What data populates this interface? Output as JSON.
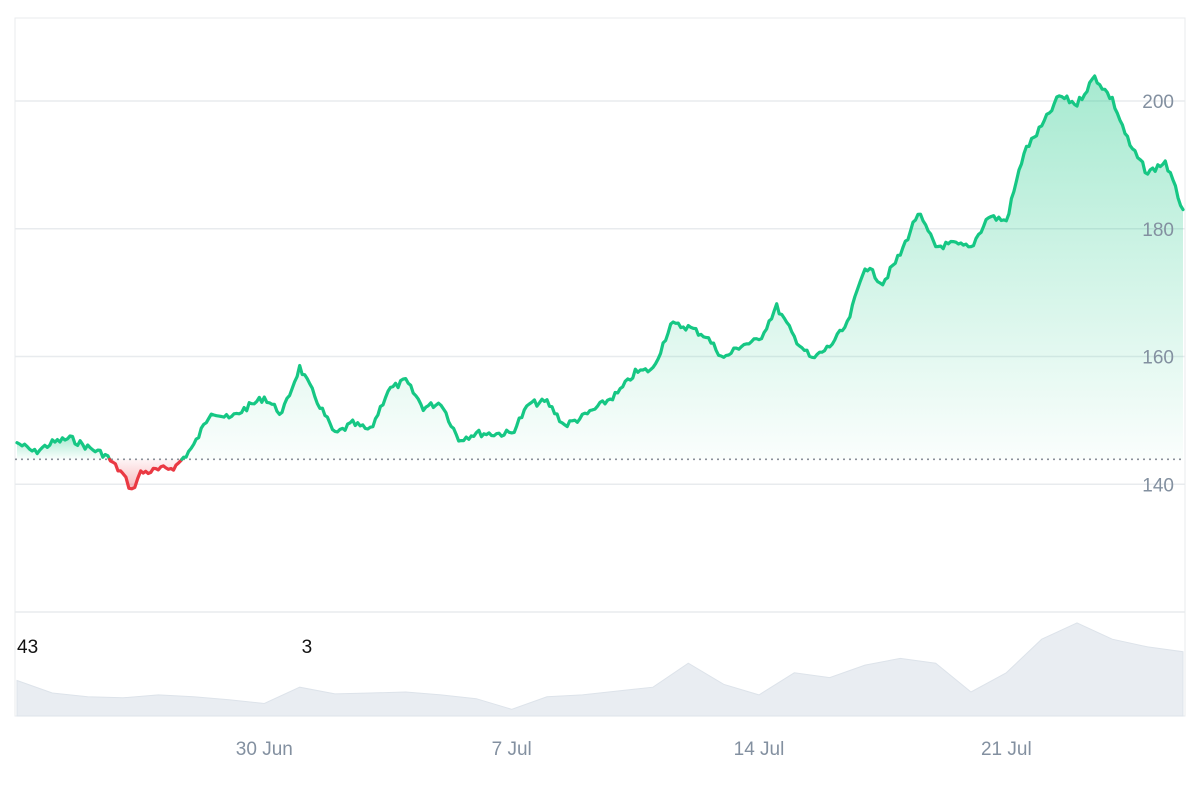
{
  "chart_data": {
    "type": "area",
    "baseline": 143.9,
    "ylim": [
      120,
      213
    ],
    "y_ticks": [
      {
        "value": 140,
        "label": "140"
      },
      {
        "value": 160,
        "label": "160"
      },
      {
        "value": 180,
        "label": "180"
      },
      {
        "value": 200,
        "label": "200"
      }
    ],
    "x_start": "2025-06-23",
    "x_end": "2025-07-26",
    "x_ticks": [
      {
        "date": "2025-06-30",
        "label": "30 Jun"
      },
      {
        "date": "2025-07-07",
        "label": "7 Jul"
      },
      {
        "date": "2025-07-14",
        "label": "14 Jul"
      },
      {
        "date": "2025-07-21",
        "label": "21 Jul"
      }
    ],
    "colors": {
      "above": "#16c784",
      "below": "#ea3943",
      "grid": "#e8ebee",
      "baseline": "#8a9099",
      "volume": "#e9edf2"
    },
    "price_series": [
      [
        "2025-06-23T00",
        146.5
      ],
      [
        "2025-06-23T12",
        145.0
      ],
      [
        "2025-06-24T00",
        146.5
      ],
      [
        "2025-06-24T12",
        147.2
      ],
      [
        "2025-06-25T00",
        145.8
      ],
      [
        "2025-06-25T12",
        144.6
      ],
      [
        "2025-06-26T00",
        141.5
      ],
      [
        "2025-06-26T06",
        139.0
      ],
      [
        "2025-06-26T12",
        141.8
      ],
      [
        "2025-06-27T00",
        142.2
      ],
      [
        "2025-06-27T12",
        142.8
      ],
      [
        "2025-06-28T00",
        146.0
      ],
      [
        "2025-06-28T12",
        151.5
      ],
      [
        "2025-06-29T00",
        150.2
      ],
      [
        "2025-06-29T12",
        152.0
      ],
      [
        "2025-06-30T00",
        153.6
      ],
      [
        "2025-06-30T12",
        151.0
      ],
      [
        "2025-07-01T00",
        158.3
      ],
      [
        "2025-07-01T12",
        153.0
      ],
      [
        "2025-07-02T00",
        147.8
      ],
      [
        "2025-07-02T12",
        149.5
      ],
      [
        "2025-07-03T00",
        148.4
      ],
      [
        "2025-07-03T12",
        154.7
      ],
      [
        "2025-07-04T00",
        156.2
      ],
      [
        "2025-07-04T12",
        152.0
      ],
      [
        "2025-07-05T00",
        152.8
      ],
      [
        "2025-07-05T12",
        147.0
      ],
      [
        "2025-07-06T00",
        148.0
      ],
      [
        "2025-07-06T12",
        147.9
      ],
      [
        "2025-07-07T00",
        148.0
      ],
      [
        "2025-07-07T12",
        152.6
      ],
      [
        "2025-07-08T00",
        152.9
      ],
      [
        "2025-07-08T12",
        149.2
      ],
      [
        "2025-07-09T00",
        150.5
      ],
      [
        "2025-07-09T12",
        152.3
      ],
      [
        "2025-07-10T00",
        154.2
      ],
      [
        "2025-07-10T12",
        157.5
      ],
      [
        "2025-07-11T00",
        158.0
      ],
      [
        "2025-07-11T12",
        165.0
      ],
      [
        "2025-07-12T00",
        164.6
      ],
      [
        "2025-07-12T12",
        163.2
      ],
      [
        "2025-07-13T00",
        159.7
      ],
      [
        "2025-07-13T12",
        161.8
      ],
      [
        "2025-07-14T00",
        162.5
      ],
      [
        "2025-07-14T12",
        167.8
      ],
      [
        "2025-07-15T00",
        163.0
      ],
      [
        "2025-07-15T12",
        159.5
      ],
      [
        "2025-07-16T00",
        161.6
      ],
      [
        "2025-07-16T12",
        165.0
      ],
      [
        "2025-07-17T00",
        174.2
      ],
      [
        "2025-07-17T12",
        171.5
      ],
      [
        "2025-07-18T00",
        176.0
      ],
      [
        "2025-07-18T12",
        182.5
      ],
      [
        "2025-07-19T00",
        177.2
      ],
      [
        "2025-07-19T12",
        177.6
      ],
      [
        "2025-07-20T00",
        177.0
      ],
      [
        "2025-07-20T12",
        182.0
      ],
      [
        "2025-07-21T00",
        181.2
      ],
      [
        "2025-07-21T12",
        192.0
      ],
      [
        "2025-07-22T00",
        196.0
      ],
      [
        "2025-07-22T12",
        200.8
      ],
      [
        "2025-07-23T00",
        199.5
      ],
      [
        "2025-07-23T12",
        203.8
      ],
      [
        "2025-07-24T00",
        200.2
      ],
      [
        "2025-07-24T12",
        193.0
      ],
      [
        "2025-07-25T00",
        188.7
      ],
      [
        "2025-07-25T12",
        190.5
      ],
      [
        "2025-07-26T00",
        183.0
      ]
    ],
    "volume_labels": [
      {
        "text": "43",
        "date": "2025-06-23"
      },
      {
        "text": "3",
        "date": "2025-07-01"
      }
    ],
    "volume_series": [
      [
        "2025-06-23",
        0.37
      ],
      [
        "2025-06-24",
        0.24
      ],
      [
        "2025-06-25",
        0.2
      ],
      [
        "2025-06-26",
        0.19
      ],
      [
        "2025-06-27",
        0.22
      ],
      [
        "2025-06-28",
        0.2
      ],
      [
        "2025-06-29",
        0.17
      ],
      [
        "2025-06-30",
        0.13
      ],
      [
        "2025-07-01",
        0.3
      ],
      [
        "2025-07-02",
        0.23
      ],
      [
        "2025-07-03",
        0.24
      ],
      [
        "2025-07-04",
        0.25
      ],
      [
        "2025-07-05",
        0.22
      ],
      [
        "2025-07-06",
        0.18
      ],
      [
        "2025-07-07",
        0.07
      ],
      [
        "2025-07-08",
        0.2
      ],
      [
        "2025-07-09",
        0.22
      ],
      [
        "2025-07-10",
        0.26
      ],
      [
        "2025-07-11",
        0.3
      ],
      [
        "2025-07-12",
        0.55
      ],
      [
        "2025-07-13",
        0.33
      ],
      [
        "2025-07-14",
        0.22
      ],
      [
        "2025-07-15",
        0.45
      ],
      [
        "2025-07-16",
        0.4
      ],
      [
        "2025-07-17",
        0.53
      ],
      [
        "2025-07-18",
        0.6
      ],
      [
        "2025-07-19",
        0.55
      ],
      [
        "2025-07-20",
        0.25
      ],
      [
        "2025-07-21",
        0.45
      ],
      [
        "2025-07-22",
        0.8
      ],
      [
        "2025-07-23",
        0.97
      ],
      [
        "2025-07-24",
        0.8
      ],
      [
        "2025-07-25",
        0.72
      ],
      [
        "2025-07-26",
        0.67
      ]
    ]
  }
}
